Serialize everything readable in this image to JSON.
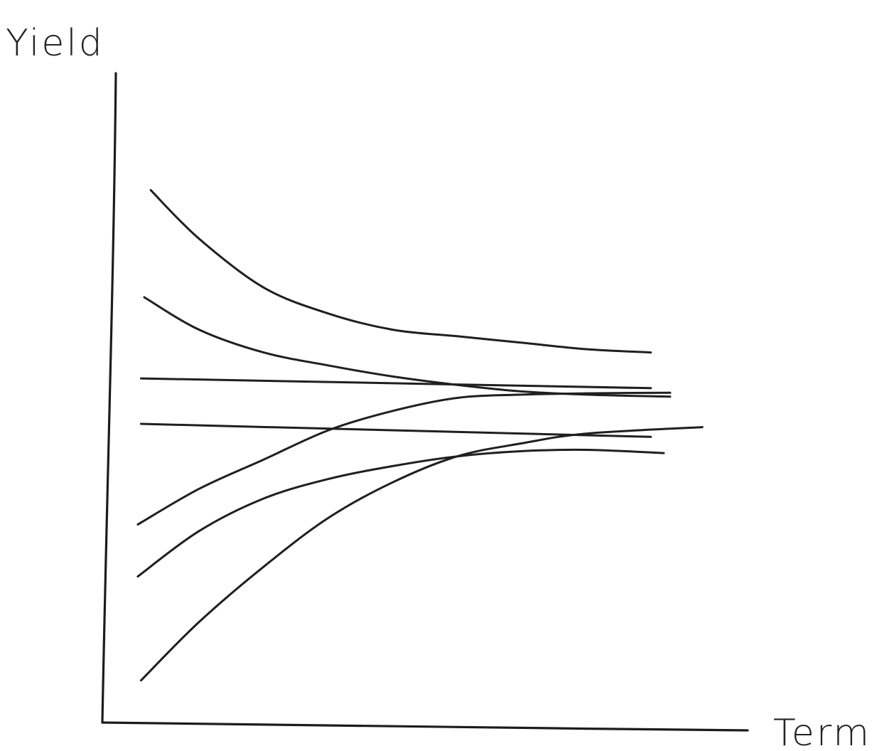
{
  "chart_data": {
    "type": "line",
    "title": "",
    "xlabel": "Term",
    "ylabel": "Yield",
    "grid": false,
    "legend": "none",
    "xlim": [
      0,
      10
    ],
    "ylim": [
      0,
      10
    ],
    "line_color": "#1f1f1f",
    "series": [
      {
        "x": [
          0.75,
          1.5,
          2.5,
          3.5,
          4.5,
          5.5,
          6.5,
          7.5,
          8.5
        ],
        "values": [
          8.2,
          7.45,
          6.7,
          6.3,
          6.05,
          5.95,
          5.85,
          5.75,
          5.7
        ]
      },
      {
        "x": [
          0.65,
          1.5,
          2.5,
          3.5,
          4.5,
          5.5,
          6.5,
          7.5,
          8.8
        ],
        "values": [
          6.55,
          6.05,
          5.7,
          5.5,
          5.33,
          5.2,
          5.1,
          5.05,
          5.02
        ]
      },
      {
        "x": [
          0.6,
          8.5
        ],
        "values": [
          5.3,
          5.15
        ]
      },
      {
        "x": [
          0.6,
          8.5
        ],
        "values": [
          4.6,
          4.4
        ]
      },
      {
        "x": [
          0.55,
          1.5,
          2.5,
          3.5,
          4.5,
          5.5,
          6.5,
          7.5,
          8.8
        ],
        "values": [
          3.05,
          3.6,
          4.05,
          4.5,
          4.8,
          5.0,
          5.05,
          5.07,
          5.08
        ]
      },
      {
        "x": [
          0.55,
          1.5,
          2.5,
          3.5,
          4.5,
          5.5,
          6.5,
          7.5,
          8.7
        ],
        "values": [
          2.25,
          2.95,
          3.45,
          3.75,
          3.95,
          4.1,
          4.18,
          4.2,
          4.15
        ]
      },
      {
        "x": [
          0.6,
          1.5,
          2.5,
          3.5,
          4.5,
          5.5,
          6.5,
          7.5,
          9.3
        ],
        "values": [
          0.65,
          1.55,
          2.4,
          3.15,
          3.7,
          4.1,
          4.3,
          4.45,
          4.55
        ]
      }
    ]
  }
}
